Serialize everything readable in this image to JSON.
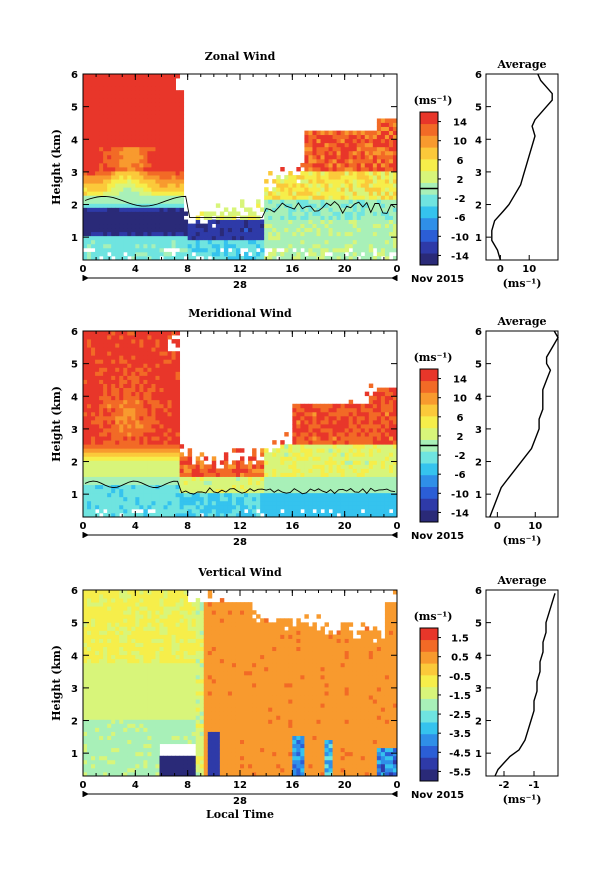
{
  "figure": {
    "local_time_label": "Local Time",
    "unit_label": "(ms⁻¹)",
    "date_label": "Nov 2015",
    "day_label": "28",
    "average_title": "Average"
  },
  "chart_data": [
    {
      "type": "heatmap",
      "title": "Zonal Wind",
      "xlabel": "",
      "ylabel": "Height (km)",
      "x_ticks": [
        "0",
        "4",
        "8",
        "12",
        "16",
        "20",
        "0"
      ],
      "x_range_hours": [
        0,
        24
      ],
      "y_ticks": [
        "1",
        "2",
        "3",
        "4",
        "5",
        "6"
      ],
      "y_range_km": [
        0.3,
        6.0
      ],
      "colorbar": {
        "unit": "(ms⁻¹)",
        "range": [
          -16,
          16
        ],
        "ticks": [
          "14",
          "10",
          "6",
          "2",
          "-2",
          "-6",
          "-10",
          "-14"
        ],
        "contour_at": 0
      },
      "colormap": [
        "#2a2a78",
        "#2e3aa8",
        "#2b5ed6",
        "#2f8fe8",
        "#35c3ee",
        "#6fe4e0",
        "#a8f0b8",
        "#d8f57a",
        "#f6ee4a",
        "#fbc93a",
        "#f89a2e",
        "#f26a26",
        "#e8362a"
      ],
      "average_profile": {
        "x_ticks": [
          "0",
          "10"
        ],
        "x_range": [
          -5,
          20
        ],
        "height_km": [
          0.3,
          0.6,
          0.9,
          1.2,
          1.5,
          1.8,
          2.0,
          2.3,
          2.6,
          2.9,
          3.2,
          3.5,
          3.8,
          4.1,
          4.4,
          4.6,
          4.8,
          5.0,
          5.2,
          5.4,
          5.6,
          5.8,
          6.0
        ],
        "value": [
          0,
          -1,
          -3,
          -3,
          -2,
          1,
          3,
          5,
          7,
          8,
          9,
          10,
          11,
          12,
          11,
          12,
          14,
          16,
          18,
          18,
          16,
          14,
          13
        ]
      }
    },
    {
      "type": "heatmap",
      "title": "Meridional Wind",
      "xlabel": "",
      "ylabel": "Height (km)",
      "x_ticks": [
        "0",
        "4",
        "8",
        "12",
        "16",
        "20",
        "0"
      ],
      "x_range_hours": [
        0,
        24
      ],
      "y_ticks": [
        "1",
        "2",
        "3",
        "4",
        "5",
        "6"
      ],
      "y_range_km": [
        0.3,
        6.0
      ],
      "colorbar": {
        "unit": "(ms⁻¹)",
        "range": [
          -16,
          16
        ],
        "ticks": [
          "14",
          "10",
          "6",
          "2",
          "-2",
          "-6",
          "-10",
          "-14"
        ],
        "contour_at": 0
      },
      "colormap": [
        "#2a2a78",
        "#2e3aa8",
        "#2b5ed6",
        "#2f8fe8",
        "#35c3ee",
        "#6fe4e0",
        "#a8f0b8",
        "#d8f57a",
        "#f6ee4a",
        "#fbc93a",
        "#f89a2e",
        "#f26a26",
        "#e8362a"
      ],
      "average_profile": {
        "x_ticks": [
          "0",
          "10"
        ],
        "x_range": [
          -3,
          16
        ],
        "height_km": [
          0.3,
          0.6,
          0.9,
          1.2,
          1.5,
          1.8,
          2.1,
          2.4,
          2.7,
          3.0,
          3.3,
          3.6,
          3.9,
          4.2,
          4.5,
          4.8,
          5.0,
          5.2,
          5.4,
          5.6,
          5.8,
          6.0
        ],
        "value": [
          -2,
          -1,
          0,
          1,
          3,
          5,
          7,
          9,
          10,
          11,
          11,
          12,
          12,
          12,
          13,
          14,
          13,
          13,
          14,
          15,
          16,
          15
        ]
      }
    },
    {
      "type": "heatmap",
      "title": "Vertical Wind",
      "xlabel": "Local Time",
      "ylabel": "Height (km)",
      "x_ticks": [
        "0",
        "4",
        "8",
        "12",
        "16",
        "20",
        "0"
      ],
      "x_range_hours": [
        0,
        24
      ],
      "y_ticks": [
        "1",
        "2",
        "3",
        "4",
        "5",
        "6"
      ],
      "y_range_km": [
        0.3,
        6.0
      ],
      "colorbar": {
        "unit": "(ms⁻¹)",
        "range": [
          -6.0,
          2.0
        ],
        "ticks": [
          "1.5",
          "0.5",
          "-0.5",
          "-1.5",
          "-2.5",
          "-3.5",
          "-4.5",
          "-5.5"
        ]
      },
      "colormap": [
        "#2a2a78",
        "#2e3aa8",
        "#2b5ed6",
        "#2f8fe8",
        "#35c3ee",
        "#6fe4e0",
        "#a8f0b8",
        "#d8f57a",
        "#f6ee4a",
        "#fbc93a",
        "#f89a2e",
        "#f26a26",
        "#e8362a"
      ],
      "average_profile": {
        "x_ticks": [
          "-2",
          "-1"
        ],
        "x_range": [
          -2.6,
          -0.2
        ],
        "height_km": [
          0.3,
          0.5,
          0.7,
          0.9,
          1.1,
          1.4,
          1.7,
          2.0,
          2.3,
          2.6,
          2.9,
          3.2,
          3.5,
          3.8,
          4.1,
          4.4,
          4.7,
          5.0,
          5.3,
          5.6,
          5.9
        ],
        "value": [
          -2.3,
          -2.2,
          -2.0,
          -1.8,
          -1.5,
          -1.3,
          -1.2,
          -1.1,
          -1.0,
          -1.0,
          -0.9,
          -0.9,
          -0.8,
          -0.8,
          -0.7,
          -0.7,
          -0.6,
          -0.6,
          -0.5,
          -0.4,
          -0.3
        ]
      }
    }
  ]
}
